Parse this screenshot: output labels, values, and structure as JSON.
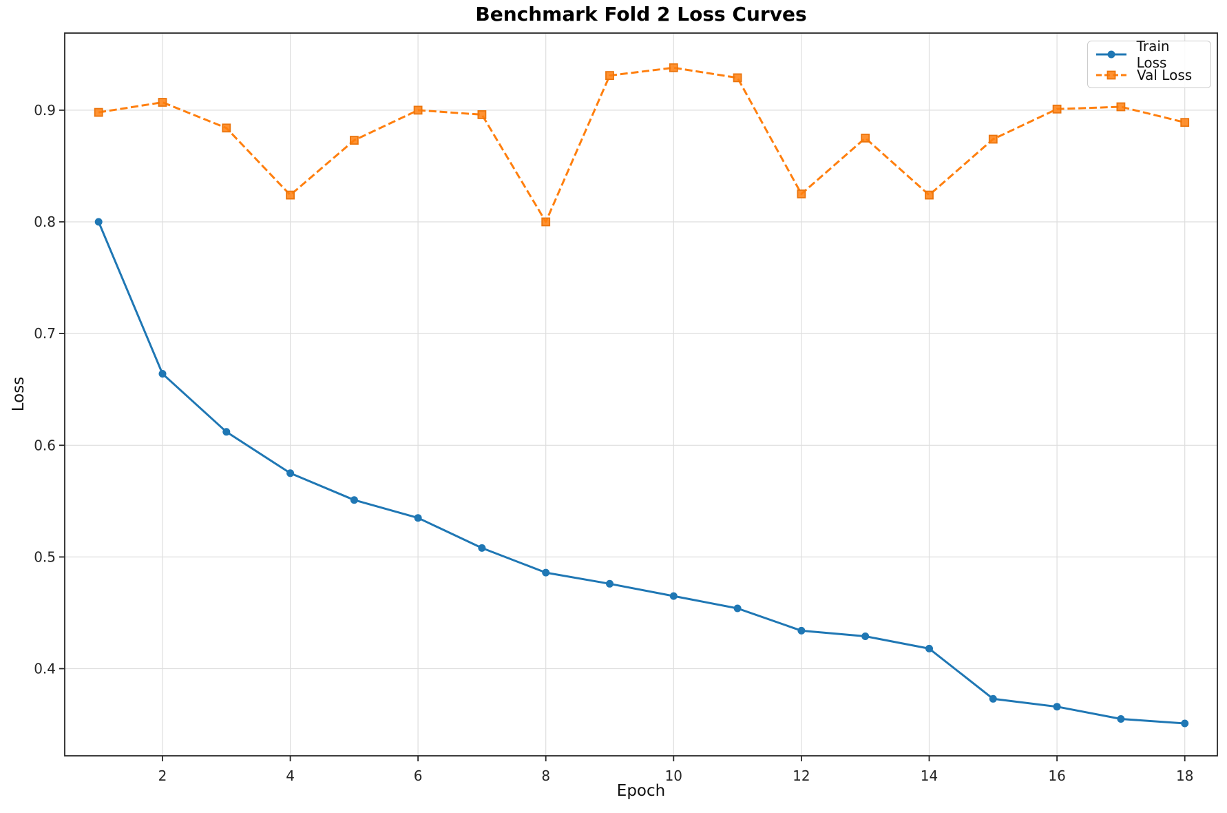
{
  "chart_data": {
    "type": "line",
    "title": "Benchmark Fold 2 Loss Curves",
    "xlabel": "Epoch",
    "ylabel": "Loss",
    "x": [
      1,
      2,
      3,
      4,
      5,
      6,
      7,
      8,
      9,
      10,
      11,
      12,
      13,
      14,
      15,
      16,
      17,
      18
    ],
    "series": [
      {
        "name": "Train Loss",
        "color": "#1f77b4",
        "style": "solid",
        "marker": "circle",
        "values": [
          0.8,
          0.664,
          0.612,
          0.575,
          0.551,
          0.535,
          0.508,
          0.486,
          0.476,
          0.465,
          0.454,
          0.434,
          0.429,
          0.418,
          0.373,
          0.366,
          0.355,
          0.351
        ]
      },
      {
        "name": "Val Loss",
        "color": "#ff7f0e",
        "style": "dashed",
        "marker": "square",
        "values": [
          0.898,
          0.907,
          0.884,
          0.824,
          0.873,
          0.9,
          0.896,
          0.8,
          0.931,
          0.938,
          0.929,
          0.825,
          0.875,
          0.824,
          0.874,
          0.901,
          0.903,
          0.889
        ]
      }
    ],
    "xticks": [
      2,
      4,
      6,
      8,
      10,
      12,
      14,
      16,
      18
    ],
    "yticks": [
      0.4,
      0.5,
      0.6,
      0.7,
      0.8,
      0.9
    ],
    "xlim": [
      0.47,
      18.51
    ],
    "ylim": [
      0.322,
      0.969
    ],
    "grid": true,
    "legend_position": "upper right",
    "grid_color": "#dedede",
    "axis_color": "#262626"
  }
}
